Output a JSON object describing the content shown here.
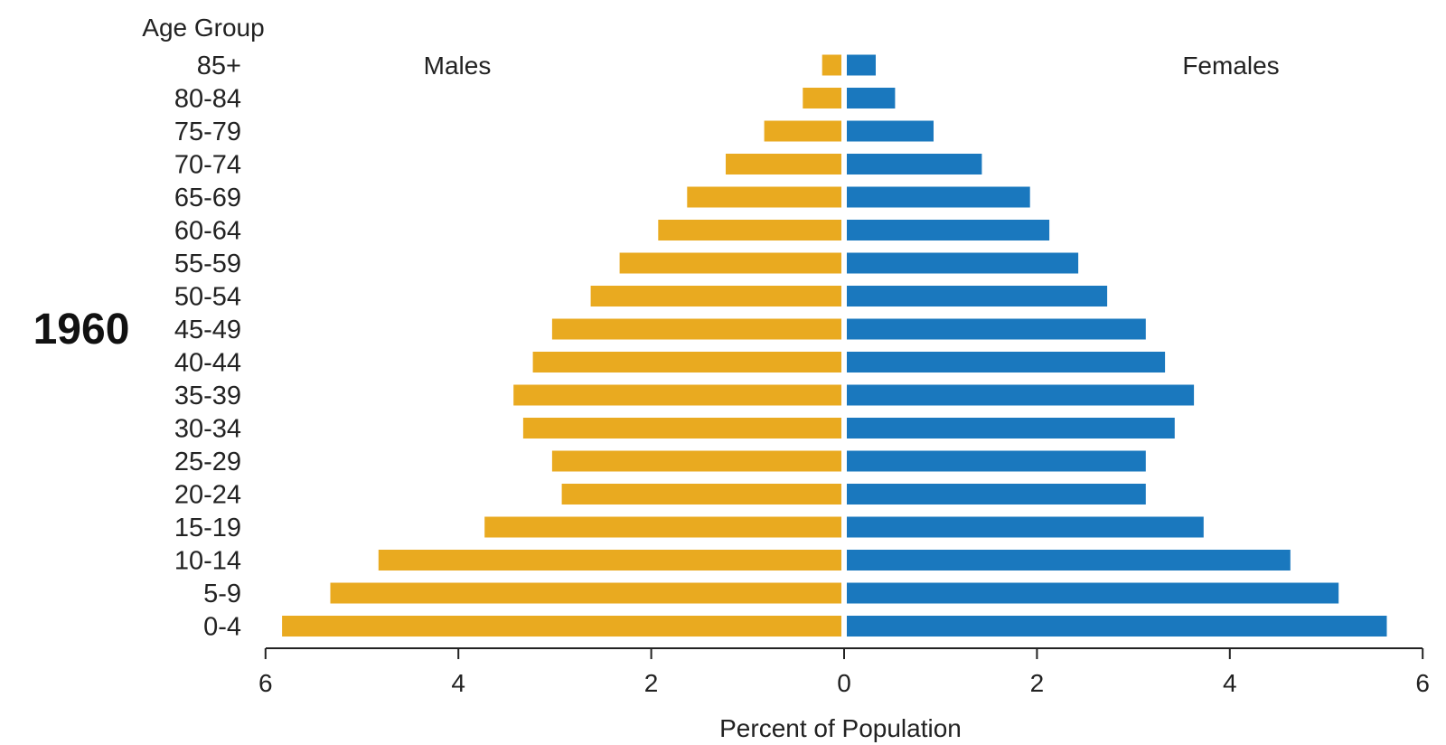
{
  "year_label": "1960",
  "colors": {
    "males": "#E9AA20",
    "females": "#1A78BE",
    "axis": "#222222"
  },
  "chart_data": {
    "type": "bar",
    "orientation": "horizontal",
    "subtype": "population-pyramid",
    "categories": [
      "0-4",
      "5-9",
      "10-14",
      "15-19",
      "20-24",
      "25-29",
      "30-34",
      "35-39",
      "40-44",
      "45-49",
      "50-54",
      "55-59",
      "60-64",
      "65-69",
      "70-74",
      "75-79",
      "80-84",
      "85+"
    ],
    "series": [
      {
        "name": "Males",
        "values": [
          5.8,
          5.3,
          4.8,
          3.7,
          2.9,
          3.0,
          3.3,
          3.4,
          3.2,
          3.0,
          2.6,
          2.3,
          1.9,
          1.6,
          1.2,
          0.8,
          0.4,
          0.2
        ]
      },
      {
        "name": "Females",
        "values": [
          5.6,
          5.1,
          4.6,
          3.7,
          3.1,
          3.1,
          3.4,
          3.6,
          3.3,
          3.1,
          2.7,
          2.4,
          2.1,
          1.9,
          1.4,
          0.9,
          0.5,
          0.3
        ]
      }
    ],
    "ylabel": "Age Group",
    "xlabel": "Percent of Population",
    "xlim": [
      -6,
      6
    ],
    "xticks": [
      -6,
      -4,
      -2,
      0,
      2,
      4,
      6
    ],
    "xtick_labels": [
      "6",
      "4",
      "2",
      "0",
      "2",
      "4",
      "6"
    ],
    "grid": false
  }
}
